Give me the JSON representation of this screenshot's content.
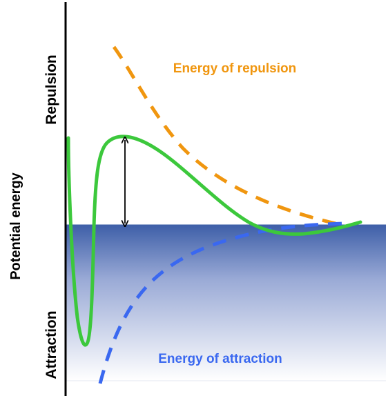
{
  "labels": {
    "y_axis": "Potential energy",
    "repulsion": "Repulsion",
    "attraction": "Attraction",
    "energy_of_repulsion": "Energy of repulsion",
    "energy_of_attraction": "Energy of attraction"
  },
  "colors": {
    "repulsion_curve": "#f0960f",
    "attraction_curve": "#3a68f0",
    "net_curve": "#3cc83c",
    "gradient_top": "#3e5fa8",
    "gradient_bottom": "#ffffff",
    "axis": "#000000",
    "arrow": "#000000"
  }
}
